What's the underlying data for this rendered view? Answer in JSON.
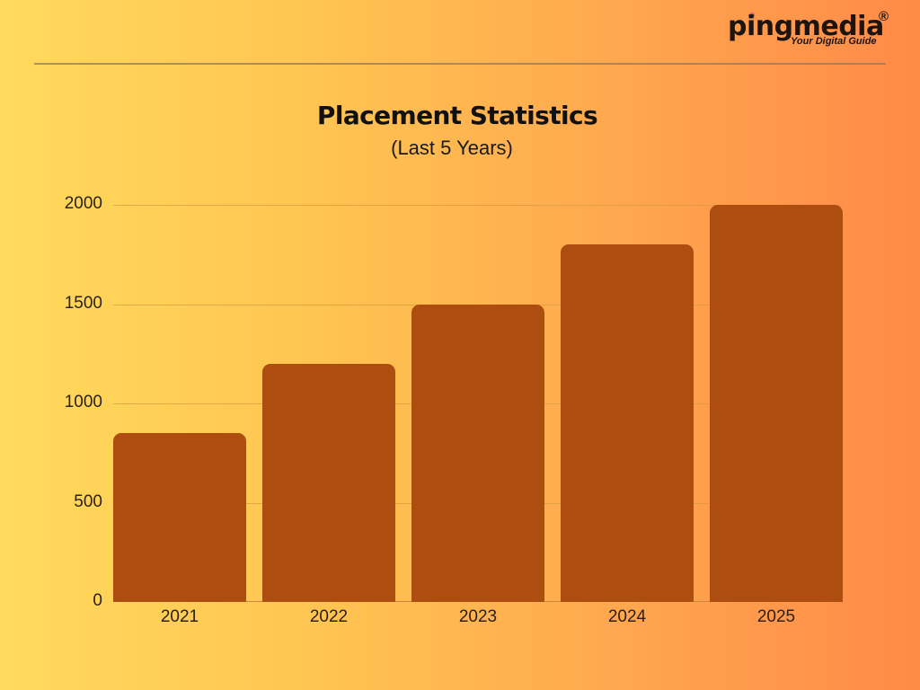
{
  "brand": {
    "name": "pingmedia",
    "registered_mark": "®",
    "tagline": "Your Digital Guide"
  },
  "header": {
    "title": "Placement Statistics",
    "subtitle": "(Last 5 Years)"
  },
  "colors": {
    "bar": "#AD4E10",
    "background_left": "#FFDA5C",
    "background_right": "#FF8A48"
  },
  "chart_data": {
    "type": "bar",
    "title": "Placement Statistics",
    "subtitle": "(Last 5 Years)",
    "categories": [
      "2021",
      "2022",
      "2023",
      "2024",
      "2025"
    ],
    "values": [
      850,
      1200,
      1500,
      1800,
      2000
    ],
    "xlabel": "",
    "ylabel": "",
    "ylim": [
      0,
      2000
    ],
    "yticks": [
      "0",
      "500",
      "1000",
      "1500",
      "2000"
    ],
    "grid": true,
    "legend": null
  }
}
